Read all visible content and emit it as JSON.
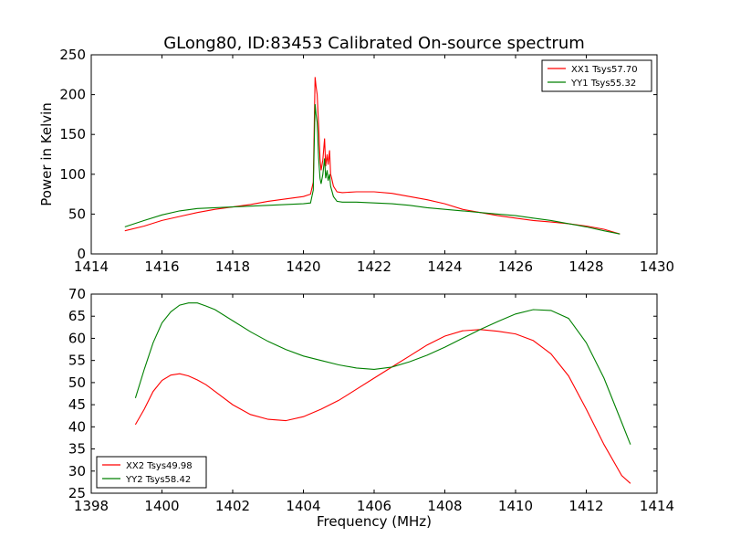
{
  "title": "GLong80, ID:83453 Calibrated On-source spectrum",
  "chart_data": [
    {
      "type": "line",
      "xlabel": "",
      "ylabel": "Power in Kelvin",
      "xlim": [
        1414,
        1430
      ],
      "ylim": [
        0,
        250
      ],
      "xticks": [
        "1414",
        "1416",
        "1418",
        "1420",
        "1422",
        "1424",
        "1426",
        "1428",
        "1430"
      ],
      "yticks": [
        "0",
        "50",
        "100",
        "150",
        "200",
        "250"
      ],
      "grid": false,
      "legend_position": "top-right",
      "series": [
        {
          "name": "XX1 Tsys57.70",
          "color": "#ff0000",
          "x": [
            1414.95,
            1415.5,
            1416.0,
            1416.5,
            1417.0,
            1417.5,
            1418.0,
            1418.5,
            1419.0,
            1419.5,
            1420.0,
            1420.2,
            1420.28,
            1420.33,
            1420.36,
            1420.39,
            1420.43,
            1420.47,
            1420.5,
            1420.55,
            1420.6,
            1420.63,
            1420.67,
            1420.7,
            1420.74,
            1420.77,
            1420.8,
            1420.85,
            1420.95,
            1421.1,
            1421.5,
            1422.0,
            1422.5,
            1423.0,
            1423.5,
            1424.0,
            1424.5,
            1425.0,
            1425.5,
            1426.0,
            1426.5,
            1427.0,
            1427.5,
            1428.0,
            1428.5,
            1428.95
          ],
          "y": [
            29,
            35,
            42,
            47,
            52,
            56,
            59,
            62,
            66,
            69,
            72,
            75,
            90,
            222,
            210,
            200,
            160,
            120,
            105,
            118,
            145,
            110,
            125,
            112,
            130,
            100,
            95,
            85,
            78,
            77,
            78,
            78,
            76,
            72,
            68,
            63,
            56,
            52,
            48,
            45,
            42,
            40,
            38,
            35,
            31,
            25
          ]
        },
        {
          "name": "YY1 Tsys55.32",
          "color": "#008000",
          "x": [
            1414.95,
            1415.5,
            1416.0,
            1416.5,
            1417.0,
            1417.5,
            1418.0,
            1418.5,
            1419.0,
            1419.5,
            1420.0,
            1420.2,
            1420.28,
            1420.33,
            1420.36,
            1420.39,
            1420.43,
            1420.47,
            1420.5,
            1420.55,
            1420.6,
            1420.63,
            1420.67,
            1420.7,
            1420.74,
            1420.77,
            1420.8,
            1420.85,
            1420.95,
            1421.1,
            1421.5,
            1422.0,
            1422.5,
            1423.0,
            1423.5,
            1424.0,
            1424.5,
            1425.0,
            1425.5,
            1426.0,
            1426.5,
            1427.0,
            1427.5,
            1428.0,
            1428.5,
            1428.95
          ],
          "y": [
            34,
            42,
            49,
            54,
            57,
            58,
            59,
            60,
            61,
            62,
            63,
            64,
            80,
            188,
            175,
            165,
            120,
            95,
            88,
            100,
            120,
            95,
            105,
            92,
            100,
            85,
            80,
            72,
            66,
            65,
            65,
            64,
            63,
            61,
            58,
            56,
            54,
            52,
            50,
            48,
            45,
            42,
            38,
            34,
            29,
            25
          ]
        }
      ]
    },
    {
      "type": "line",
      "xlabel": "Frequency (MHz)",
      "ylabel": "",
      "xlim": [
        1398,
        1414
      ],
      "ylim": [
        25,
        70
      ],
      "xticks": [
        "1398",
        "1400",
        "1402",
        "1404",
        "1406",
        "1408",
        "1410",
        "1412",
        "1414"
      ],
      "yticks": [
        "25",
        "30",
        "35",
        "40",
        "45",
        "50",
        "55",
        "60",
        "65",
        "70"
      ],
      "grid": false,
      "legend_position": "bottom-left",
      "series": [
        {
          "name": "XX2 Tsys49.98",
          "color": "#ff0000",
          "x": [
            1399.25,
            1399.5,
            1399.75,
            1400.0,
            1400.25,
            1400.5,
            1400.75,
            1401.0,
            1401.25,
            1401.5,
            1402.0,
            1402.5,
            1403.0,
            1403.5,
            1404.0,
            1404.5,
            1405.0,
            1405.5,
            1406.0,
            1406.5,
            1407.0,
            1407.5,
            1408.0,
            1408.5,
            1409.0,
            1409.5,
            1410.0,
            1410.5,
            1411.0,
            1411.5,
            1412.0,
            1412.5,
            1413.0,
            1413.25
          ],
          "y": [
            40.5,
            44,
            48,
            50.5,
            51.7,
            52,
            51.5,
            50.6,
            49.5,
            48,
            45,
            42.8,
            41.7,
            41.4,
            42.3,
            44,
            46,
            48.5,
            51,
            53.5,
            56,
            58.5,
            60.5,
            61.7,
            62,
            61.6,
            61,
            59.5,
            56.5,
            51.5,
            44,
            36,
            29,
            27.2
          ]
        },
        {
          "name": "YY2 Tsys58.42",
          "color": "#008000",
          "x": [
            1399.25,
            1399.5,
            1399.75,
            1400.0,
            1400.25,
            1400.5,
            1400.75,
            1401.0,
            1401.25,
            1401.5,
            1402.0,
            1402.5,
            1403.0,
            1403.5,
            1404.0,
            1404.5,
            1405.0,
            1405.5,
            1406.0,
            1406.5,
            1407.0,
            1407.5,
            1408.0,
            1408.5,
            1409.0,
            1409.5,
            1410.0,
            1410.5,
            1411.0,
            1411.5,
            1412.0,
            1412.5,
            1413.0,
            1413.25
          ],
          "y": [
            46.5,
            53,
            59,
            63.5,
            66,
            67.5,
            68,
            68,
            67.3,
            66.5,
            64,
            61.5,
            59.3,
            57.5,
            56,
            55,
            54,
            53.3,
            53,
            53.5,
            54.7,
            56.2,
            58,
            60,
            62,
            63.8,
            65.5,
            66.5,
            66.3,
            64.5,
            59,
            51,
            41,
            36
          ]
        }
      ]
    }
  ]
}
